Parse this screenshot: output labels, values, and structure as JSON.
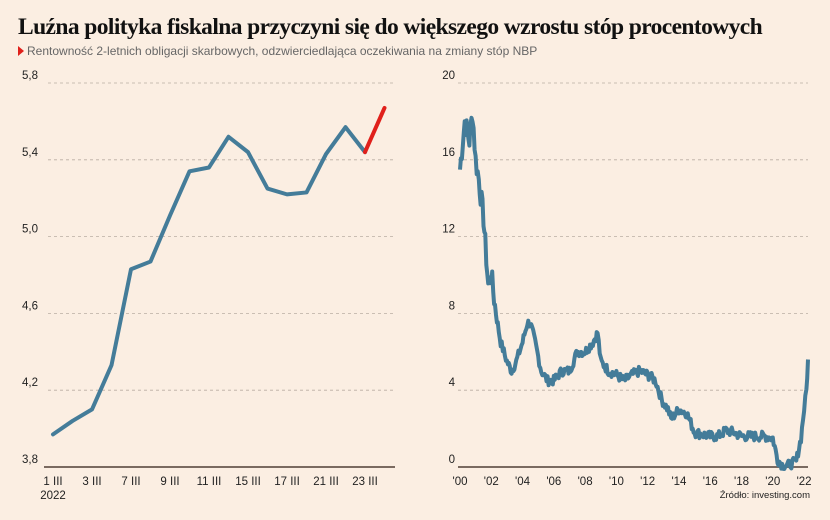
{
  "title": "Luźna polityka fiskalna przyczyni się do większego wzrostu stóp procentowych",
  "subtitle": "Rentowność 2-letnich obligacji skarbowych, odzwierciedlająca oczekiwania na zmiany stóp NBP",
  "source": "Źródło: investing.com",
  "colors": {
    "line": "#447c99",
    "highlight": "#e0201b",
    "axis": "#7a6a60",
    "grid": "#b9ada3",
    "background": "#fbeee2"
  },
  "chart_data": [
    {
      "type": "line",
      "xlabel": "",
      "ylabel": "",
      "ylim": [
        3.8,
        5.8
      ],
      "yticks": [
        "3,8",
        "4,2",
        "4,6",
        "5,0",
        "5,4",
        "5,8"
      ],
      "xticks": [
        "1 III",
        "3 III",
        "7 III",
        "9 III",
        "11 III",
        "15 III",
        "17 III",
        "21 III",
        "23 III"
      ],
      "xtick_year": "2022",
      "grid": true,
      "x": [
        "1 III",
        "2 III",
        "3 III",
        "4 III",
        "7 III",
        "8 III",
        "9 III",
        "10 III",
        "11 III",
        "14 III",
        "15 III",
        "16 III",
        "17 III",
        "18 III",
        "21 III",
        "22 III",
        "23 III",
        "24 III"
      ],
      "values": [
        3.97,
        4.04,
        4.1,
        4.33,
        4.83,
        4.87,
        5.11,
        5.34,
        5.36,
        5.52,
        5.44,
        5.25,
        5.22,
        5.23,
        5.43,
        5.57,
        5.44,
        5.67
      ],
      "highlight_last_segment": true
    },
    {
      "type": "line",
      "xlabel": "",
      "ylabel": "",
      "ylim": [
        0,
        20
      ],
      "yticks": [
        "0",
        "4",
        "8",
        "12",
        "16",
        "20"
      ],
      "xticks": [
        "'00",
        "'02",
        "'04",
        "'06",
        "'08",
        "'10",
        "'12",
        "'14",
        "'16",
        "'18",
        "'20",
        "'22"
      ],
      "grid": true,
      "x": [
        2000.0,
        2000.3,
        2000.6,
        2000.8,
        2001.0,
        2001.2,
        2001.5,
        2001.8,
        2002.0,
        2002.3,
        2002.6,
        2003.0,
        2003.3,
        2003.6,
        2004.0,
        2004.3,
        2004.5,
        2004.8,
        2005.2,
        2005.6,
        2006.0,
        2006.5,
        2007.0,
        2007.5,
        2008.0,
        2008.5,
        2008.8,
        2009.0,
        2009.5,
        2010.0,
        2010.5,
        2011.0,
        2011.5,
        2012.0,
        2012.5,
        2012.9,
        2013.3,
        2013.5,
        2014.0,
        2014.5,
        2015.0,
        2015.5,
        2016.0,
        2016.5,
        2017.0,
        2017.5,
        2018.0,
        2018.5,
        2019.0,
        2019.5,
        2020.0,
        2020.3,
        2020.6,
        2021.0,
        2021.5,
        2021.8,
        2022.0,
        2022.15,
        2022.25
      ],
      "values": [
        15.5,
        18,
        17,
        18.5,
        16,
        15,
        13,
        9.5,
        10,
        8,
        6.5,
        5.5,
        5,
        5.5,
        6.5,
        7.5,
        7.5,
        6.5,
        5,
        4.5,
        4.5,
        5,
        5,
        6,
        6,
        6.5,
        7,
        5.5,
        5,
        4.8,
        4.5,
        4.8,
        5,
        4.8,
        4.5,
        3.5,
        3,
        2.5,
        3,
        2.8,
        1.8,
        1.7,
        1.6,
        1.6,
        1.9,
        1.8,
        1.6,
        1.6,
        1.6,
        1.6,
        1.5,
        0.4,
        0.1,
        0.1,
        0.3,
        1.5,
        3.0,
        4.0,
        5.6
      ]
    }
  ]
}
